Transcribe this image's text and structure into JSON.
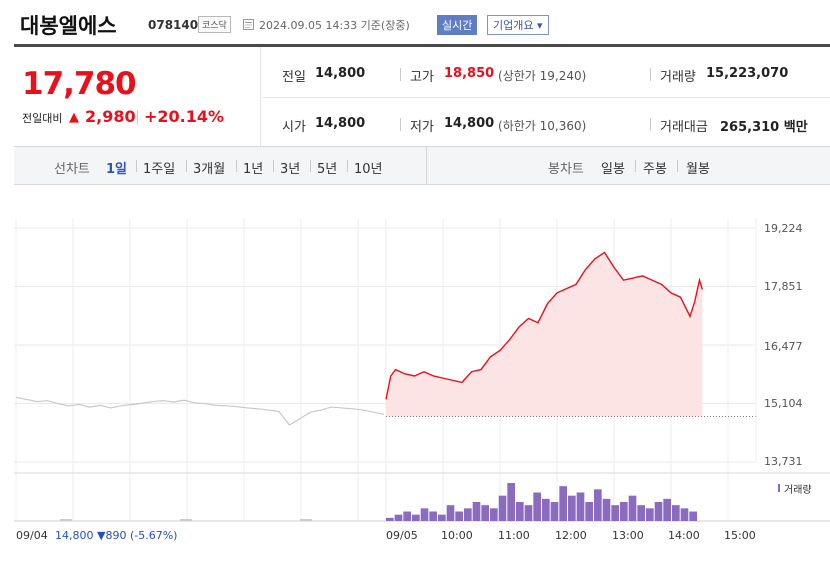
{
  "header": {
    "stock_name": "대봉엘에스",
    "stock_code": "078140",
    "market": "코스닥",
    "clock_icon": "clock-icon",
    "timestamp": "2024.09.05 14:33 기준(장중)",
    "realtime_badge": "실시간",
    "company_overview_button": "기업개요 ▾"
  },
  "summary": {
    "current_price": "17,780",
    "change_label": "전일대비",
    "change_arrow": "▲",
    "change_value": "2,980",
    "change_rate": "+20.14%",
    "rows": {
      "prev_close_label": "전일",
      "prev_close_value": "14,800",
      "high_label": "고가",
      "high_value": "18,850",
      "upper_limit_label": "상한가",
      "upper_limit_value": "19,240",
      "volume_label": "거래량",
      "volume_value": "15,223,070",
      "open_label": "시가",
      "open_value": "14,800",
      "low_label": "저가",
      "low_value": "14,800",
      "lower_limit_label": "하한가",
      "lower_limit_value": "10,360",
      "amount_label": "거래대금",
      "amount_value": "265,310",
      "amount_unit": "백만"
    }
  },
  "line_chart_tabs": {
    "label": "선차트",
    "items": [
      "1일",
      "1주일",
      "3개월",
      "1년",
      "3년",
      "5년",
      "10년"
    ],
    "active": "1일"
  },
  "candle_chart_tabs": {
    "label": "봉차트",
    "items": [
      "일봉",
      "주봉",
      "월봉"
    ]
  },
  "colors": {
    "up": "#e8101b",
    "down": "#2451c2",
    "fill": "#fde4e4",
    "volume": "#8a6bc0",
    "prev_day_line": "#c8c8c8"
  },
  "chart_data": {
    "type": "line",
    "ylim": [
      13731,
      19224
    ],
    "y_ticks": [
      "19,224",
      "17,851",
      "16,477",
      "15,104",
      "13,731"
    ],
    "x_ticks": [
      "09/05",
      "10:00",
      "11:00",
      "12:00",
      "13:00",
      "14:00",
      "15:00"
    ],
    "baseline": 14800,
    "previous_day": {
      "date": "09/04",
      "close": "14,800",
      "change_arrow": "▼",
      "change": "890",
      "change_rate": "(-5.67%)",
      "values": [
        15250,
        15200,
        15150,
        15170,
        15100,
        15050,
        15080,
        15020,
        15060,
        15000,
        15050,
        15080,
        15110,
        15150,
        15170,
        15140,
        15180,
        15120,
        15100,
        15060,
        15050,
        15030,
        15000,
        14980,
        14950,
        14920,
        14600,
        14750,
        14900,
        14950,
        15020,
        15000,
        14980,
        14950,
        14900,
        14850
      ]
    },
    "today": {
      "times": [
        "09:00",
        "09:05",
        "09:10",
        "09:20",
        "09:30",
        "09:40",
        "09:50",
        "10:00",
        "10:10",
        "10:20",
        "10:30",
        "10:40",
        "10:50",
        "11:00",
        "11:10",
        "11:20",
        "11:30",
        "11:40",
        "11:50",
        "12:00",
        "12:10",
        "12:20",
        "12:30",
        "12:40",
        "12:50",
        "13:00",
        "13:10",
        "13:20",
        "13:30",
        "13:40",
        "13:50",
        "14:00",
        "14:10",
        "14:20",
        "14:25",
        "14:30",
        "14:33"
      ],
      "values": [
        15200,
        15750,
        15900,
        15800,
        15750,
        15850,
        15750,
        15700,
        15650,
        15600,
        15850,
        15900,
        16200,
        16350,
        16600,
        16900,
        17100,
        17000,
        17450,
        17700,
        17800,
        17900,
        18250,
        18500,
        18650,
        18300,
        18000,
        18050,
        18100,
        18000,
        17900,
        17700,
        17600,
        17150,
        17500,
        18000,
        17780
      ]
    },
    "volume": {
      "label": "거래량",
      "values": [
        1,
        2,
        3,
        2,
        4,
        3,
        2,
        5,
        3,
        4,
        6,
        5,
        4,
        8,
        12,
        6,
        5,
        9,
        7,
        6,
        11,
        8,
        9,
        6,
        10,
        7,
        5,
        6,
        8,
        5,
        4,
        6,
        7,
        5,
        4,
        3
      ]
    }
  },
  "footer": {
    "line_date": "09/04"
  }
}
